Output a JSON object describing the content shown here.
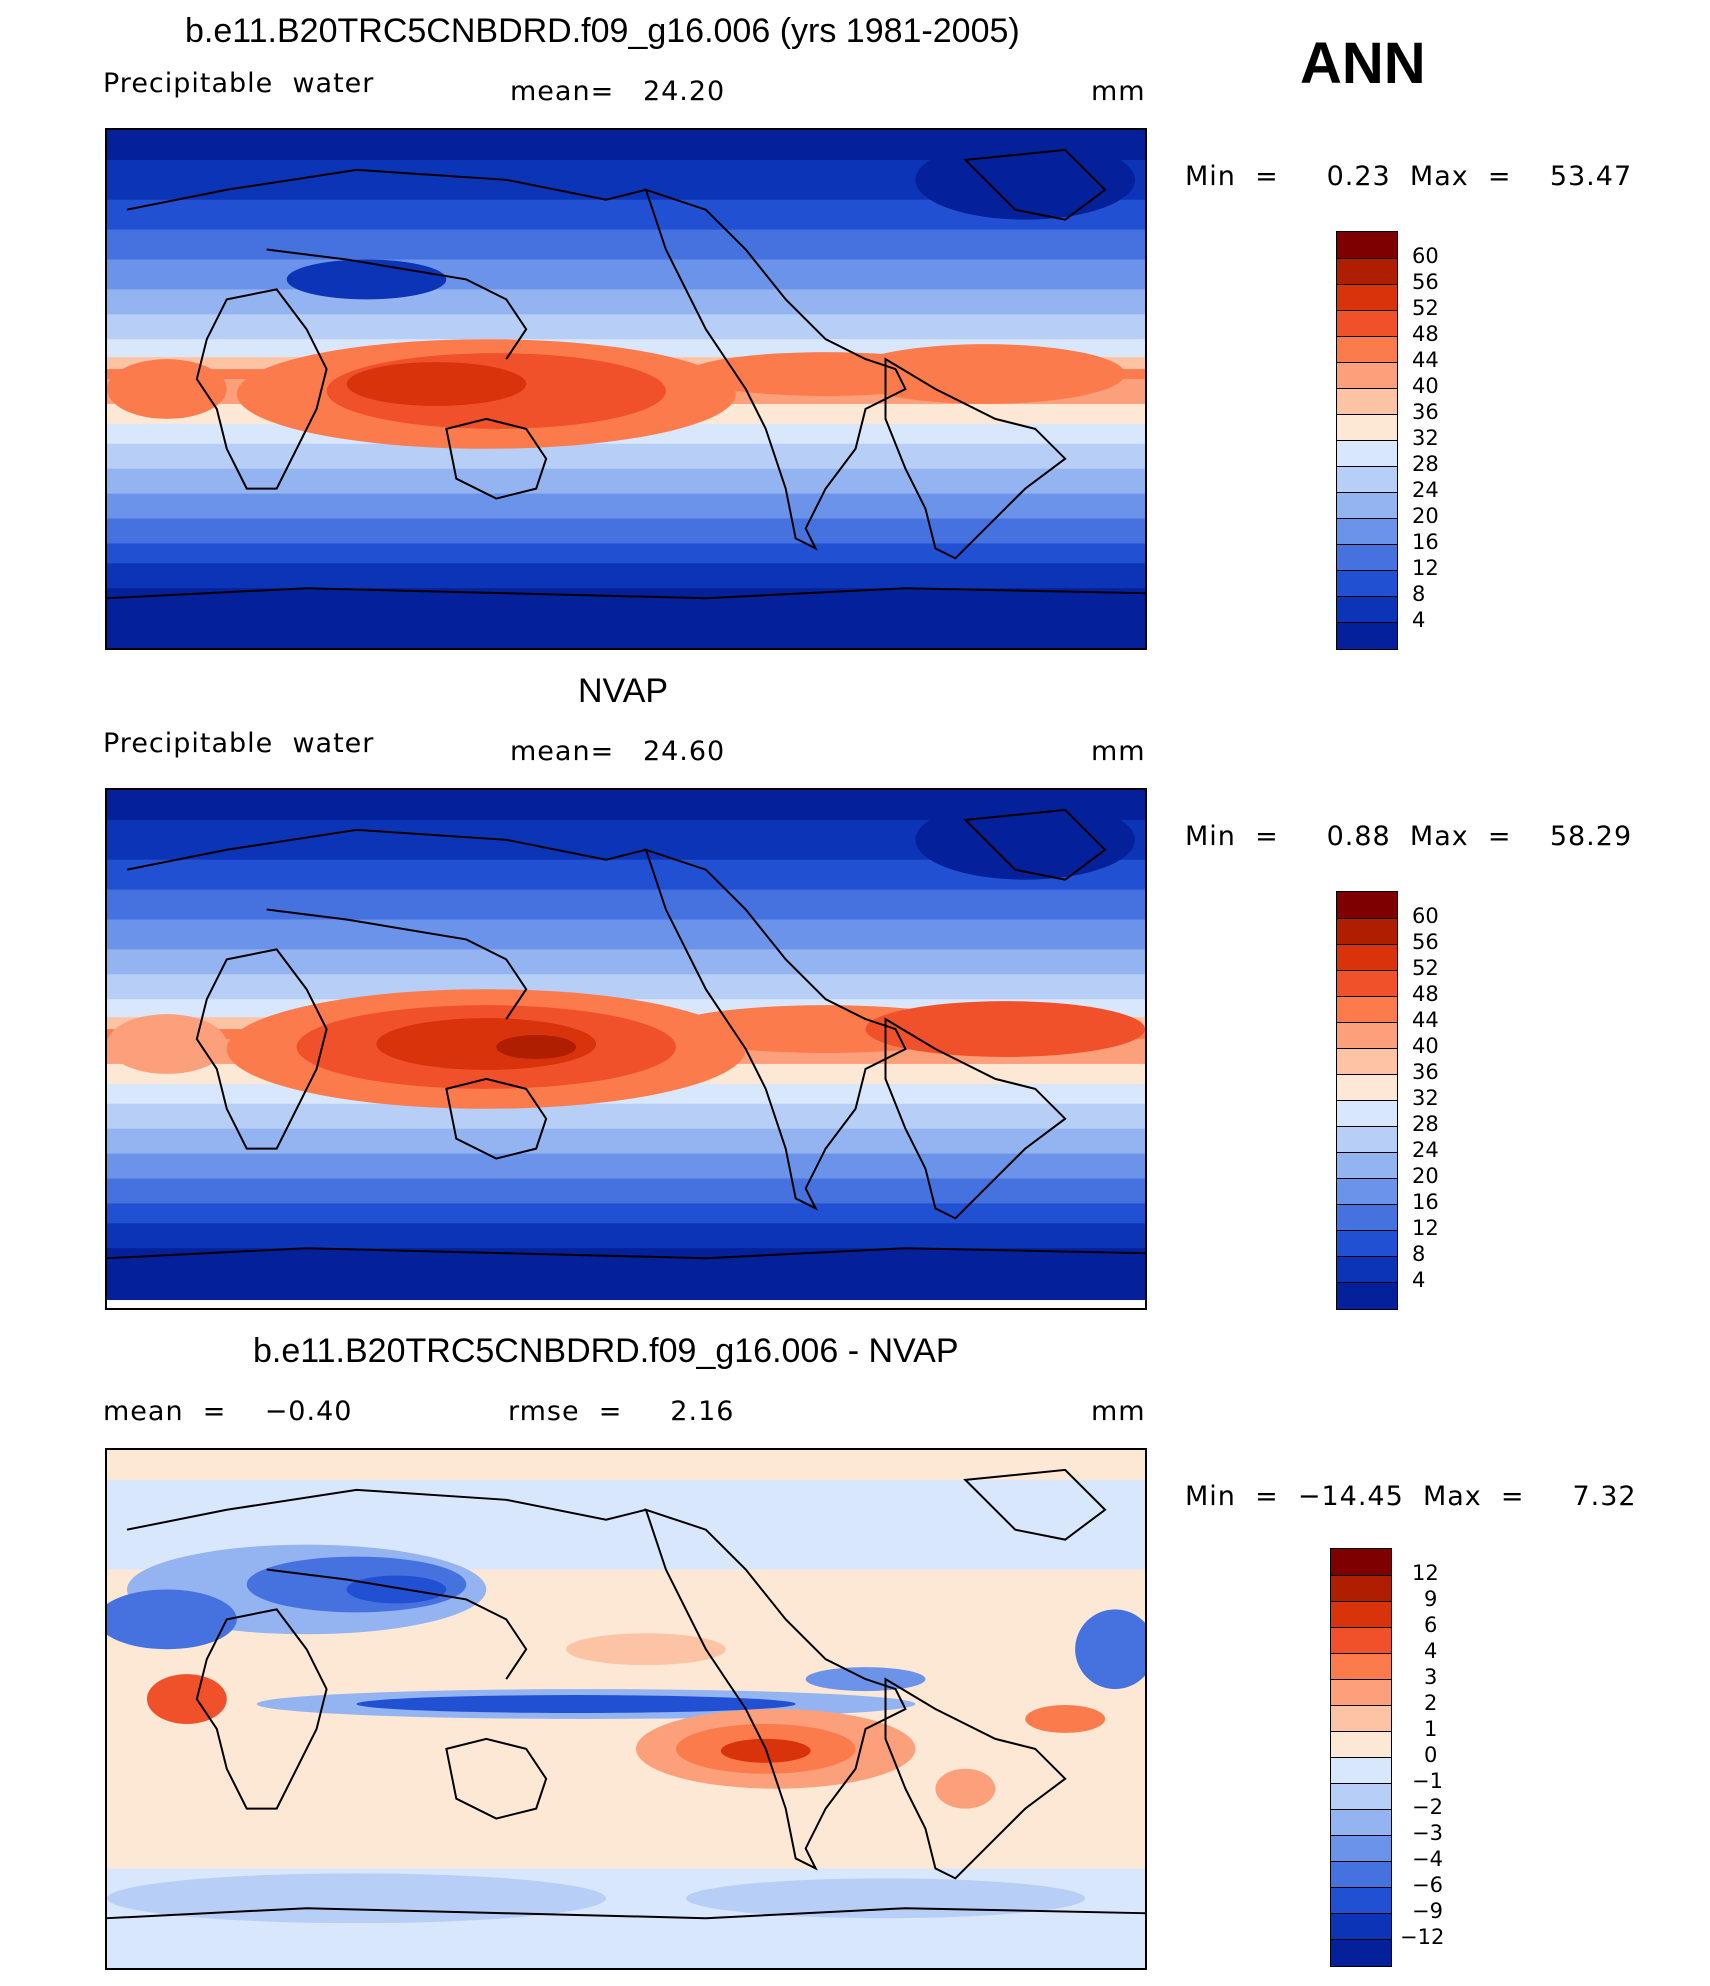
{
  "season": "ANN",
  "panels": [
    {
      "title": "b.e11.B20TRC5CNBDRD.f09_g16.006 (yrs 1981-2005)",
      "left": "Precipitable  water",
      "mid": "mean=   24.20",
      "units": "mm",
      "minmax": "Min  =     0.23  Max  =    53.47",
      "levels": [
        "60",
        "56",
        "52",
        "48",
        "44",
        "40",
        "36",
        "32",
        "28",
        "24",
        "20",
        "16",
        "12",
        "8",
        "4"
      ],
      "colors": [
        "#7f0000",
        "#b01e00",
        "#d8330a",
        "#f0502a",
        "#fb7b4c",
        "#fca07b",
        "#fcc4a5",
        "#fde8d6",
        "#d8e7fb",
        "#b7cff6",
        "#93b3f1",
        "#6c93ea",
        "#4672e0",
        "#2250d2",
        "#0b35b6",
        "#04209a"
      ]
    },
    {
      "title": "NVAP",
      "left": "Precipitable  water",
      "mid": "mean=   24.60",
      "units": "mm",
      "minmax": "Min  =     0.88  Max  =    58.29",
      "levels": [
        "60",
        "56",
        "52",
        "48",
        "44",
        "40",
        "36",
        "32",
        "28",
        "24",
        "20",
        "16",
        "12",
        "8",
        "4"
      ],
      "colors": [
        "#7f0000",
        "#b01e00",
        "#d8330a",
        "#f0502a",
        "#fb7b4c",
        "#fca07b",
        "#fcc4a5",
        "#fde8d6",
        "#d8e7fb",
        "#b7cff6",
        "#93b3f1",
        "#6c93ea",
        "#4672e0",
        "#2250d2",
        "#0b35b6",
        "#04209a"
      ]
    },
    {
      "title": "b.e11.B20TRC5CNBDRD.f09_g16.006 - NVAP",
      "left": "mean  =    −0.40",
      "mid": "rmse  =     2.16",
      "units": "mm",
      "minmax": "Min  =  −14.45  Max  =     7.32",
      "levels": [
        "12",
        "9",
        "6",
        "4",
        "3",
        "2",
        "1",
        "0",
        "−1",
        "−2",
        "−3",
        "−4",
        "−6",
        "−9",
        "−12"
      ],
      "colors": [
        "#7f0000",
        "#b01e00",
        "#d8330a",
        "#f0502a",
        "#fb7b4c",
        "#fca07b",
        "#fcc4a5",
        "#fde8d6",
        "#d8e7fb",
        "#b7cff6",
        "#93b3f1",
        "#6c93ea",
        "#4672e0",
        "#2250d2",
        "#0b35b6",
        "#04209a"
      ]
    }
  ]
}
